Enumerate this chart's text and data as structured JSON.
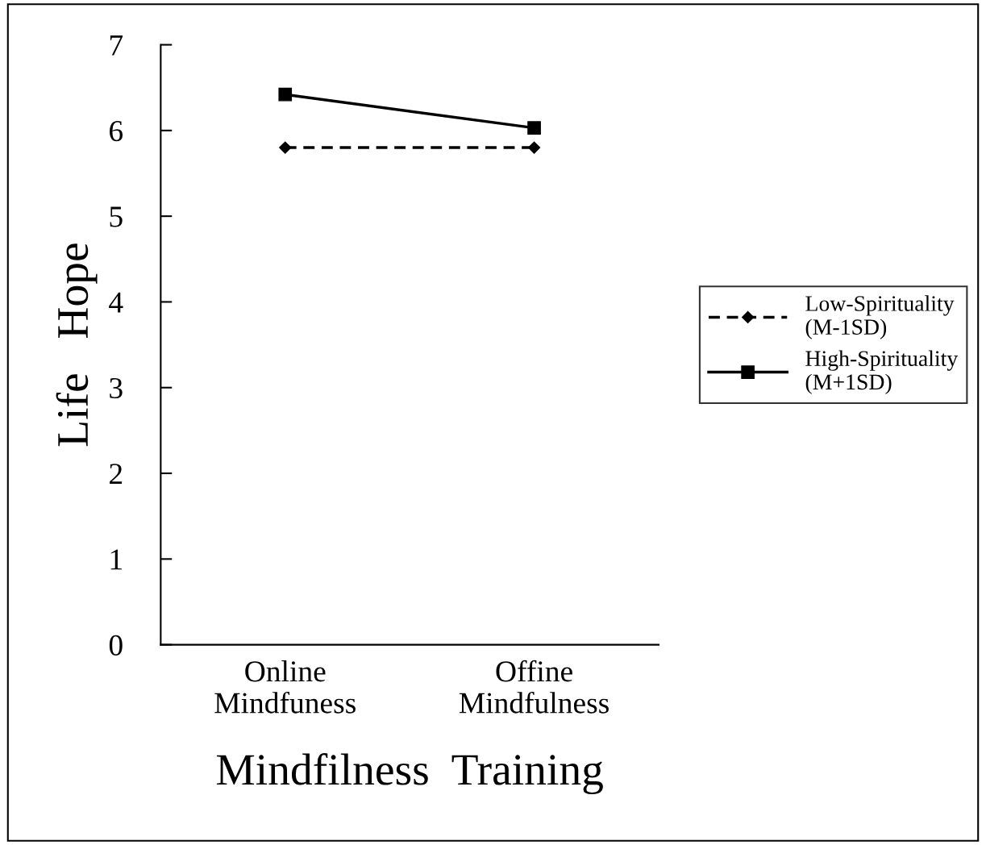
{
  "chart_data": {
    "type": "line",
    "xlabel": "Mindfilness  Training",
    "ylabel": "Life   Hope",
    "categories": [
      "Online\nMindfuness",
      "Offine\nMindfulness"
    ],
    "series": [
      {
        "name": "Low-Spirituality\n(M-1SD)",
        "color": "#000000",
        "values": [
          5.8,
          5.8
        ],
        "marker": "diamond",
        "line_style": "dashed"
      },
      {
        "name": "High-Spirituality\n(M+1SD)",
        "color": "#000000",
        "values": [
          6.42,
          6.03
        ],
        "marker": "square",
        "line_style": "solid"
      }
    ],
    "ylim": [
      0,
      7
    ],
    "yticks": [
      0,
      1,
      2,
      3,
      4,
      5,
      6,
      7
    ],
    "grid": false,
    "legend": "right"
  }
}
